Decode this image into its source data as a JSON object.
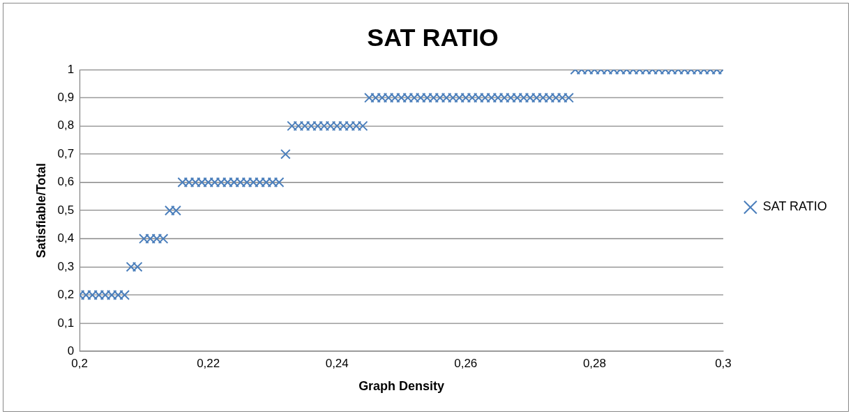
{
  "chart_data": {
    "type": "scatter",
    "title": "SAT RATIO",
    "xlabel": "Graph Density",
    "ylabel": "Satisfiable/Total",
    "xlim": [
      0.2,
      0.3
    ],
    "xticks": [
      {
        "value": 0.2,
        "label": "0,2"
      },
      {
        "value": 0.22,
        "label": "0,22"
      },
      {
        "value": 0.24,
        "label": "0,24"
      },
      {
        "value": 0.26,
        "label": "0,26"
      },
      {
        "value": 0.28,
        "label": "0,28"
      },
      {
        "value": 0.3,
        "label": "0,3"
      }
    ],
    "ylim": [
      0,
      1
    ],
    "yticks": [
      0,
      {
        "value": 0.1,
        "label": "0,1"
      },
      {
        "value": 0.2,
        "label": "0,2"
      },
      {
        "value": 0.3,
        "label": "0,3"
      },
      {
        "value": 0.4,
        "label": "0,4"
      },
      {
        "value": 0.5,
        "label": "0,5"
      },
      {
        "value": 0.6,
        "label": "0,6"
      },
      {
        "value": 0.7,
        "label": "0,7"
      },
      {
        "value": 0.8,
        "label": "0,8"
      },
      {
        "value": 0.9,
        "label": "0,9"
      },
      1
    ],
    "grid": "y",
    "legend": "right",
    "marker": "cross",
    "series": [
      {
        "name": "SAT RATIO",
        "color": "#4a7ebb",
        "x": [
          0.2,
          0.201,
          0.202,
          0.203,
          0.204,
          0.205,
          0.206,
          0.207,
          0.208,
          0.209,
          0.21,
          0.211,
          0.212,
          0.213,
          0.214,
          0.215,
          0.216,
          0.217,
          0.218,
          0.219,
          0.22,
          0.221,
          0.222,
          0.223,
          0.224,
          0.225,
          0.226,
          0.227,
          0.228,
          0.229,
          0.23,
          0.231,
          0.232,
          0.233,
          0.234,
          0.235,
          0.236,
          0.237,
          0.238,
          0.239,
          0.24,
          0.241,
          0.242,
          0.243,
          0.244,
          0.245,
          0.246,
          0.247,
          0.248,
          0.249,
          0.25,
          0.251,
          0.252,
          0.253,
          0.254,
          0.255,
          0.256,
          0.257,
          0.258,
          0.259,
          0.26,
          0.261,
          0.262,
          0.263,
          0.264,
          0.265,
          0.266,
          0.267,
          0.268,
          0.269,
          0.27,
          0.271,
          0.272,
          0.273,
          0.274,
          0.275,
          0.276,
          0.277,
          0.278,
          0.279,
          0.28,
          0.281,
          0.282,
          0.283,
          0.284,
          0.285,
          0.286,
          0.287,
          0.288,
          0.289,
          0.29,
          0.291,
          0.292,
          0.293,
          0.294,
          0.295,
          0.296,
          0.297,
          0.298,
          0.299,
          0.3
        ],
        "values": [
          0.2,
          0.2,
          0.2,
          0.2,
          0.2,
          0.2,
          0.2,
          0.2,
          0.3,
          0.3,
          0.4,
          0.4,
          0.4,
          0.4,
          0.5,
          0.5,
          0.6,
          0.6,
          0.6,
          0.6,
          0.6,
          0.6,
          0.6,
          0.6,
          0.6,
          0.6,
          0.6,
          0.6,
          0.6,
          0.6,
          0.6,
          0.6,
          0.7,
          0.8,
          0.8,
          0.8,
          0.8,
          0.8,
          0.8,
          0.8,
          0.8,
          0.8,
          0.8,
          0.8,
          0.8,
          0.9,
          0.9,
          0.9,
          0.9,
          0.9,
          0.9,
          0.9,
          0.9,
          0.9,
          0.9,
          0.9,
          0.9,
          0.9,
          0.9,
          0.9,
          0.9,
          0.9,
          0.9,
          0.9,
          0.9,
          0.9,
          0.9,
          0.9,
          0.9,
          0.9,
          0.9,
          0.9,
          0.9,
          0.9,
          0.9,
          0.9,
          0.9,
          1,
          1,
          1,
          1,
          1,
          1,
          1,
          1,
          1,
          1,
          1,
          1,
          1,
          1,
          1,
          1,
          1,
          1,
          1,
          1,
          1,
          1,
          1,
          1
        ]
      }
    ]
  }
}
